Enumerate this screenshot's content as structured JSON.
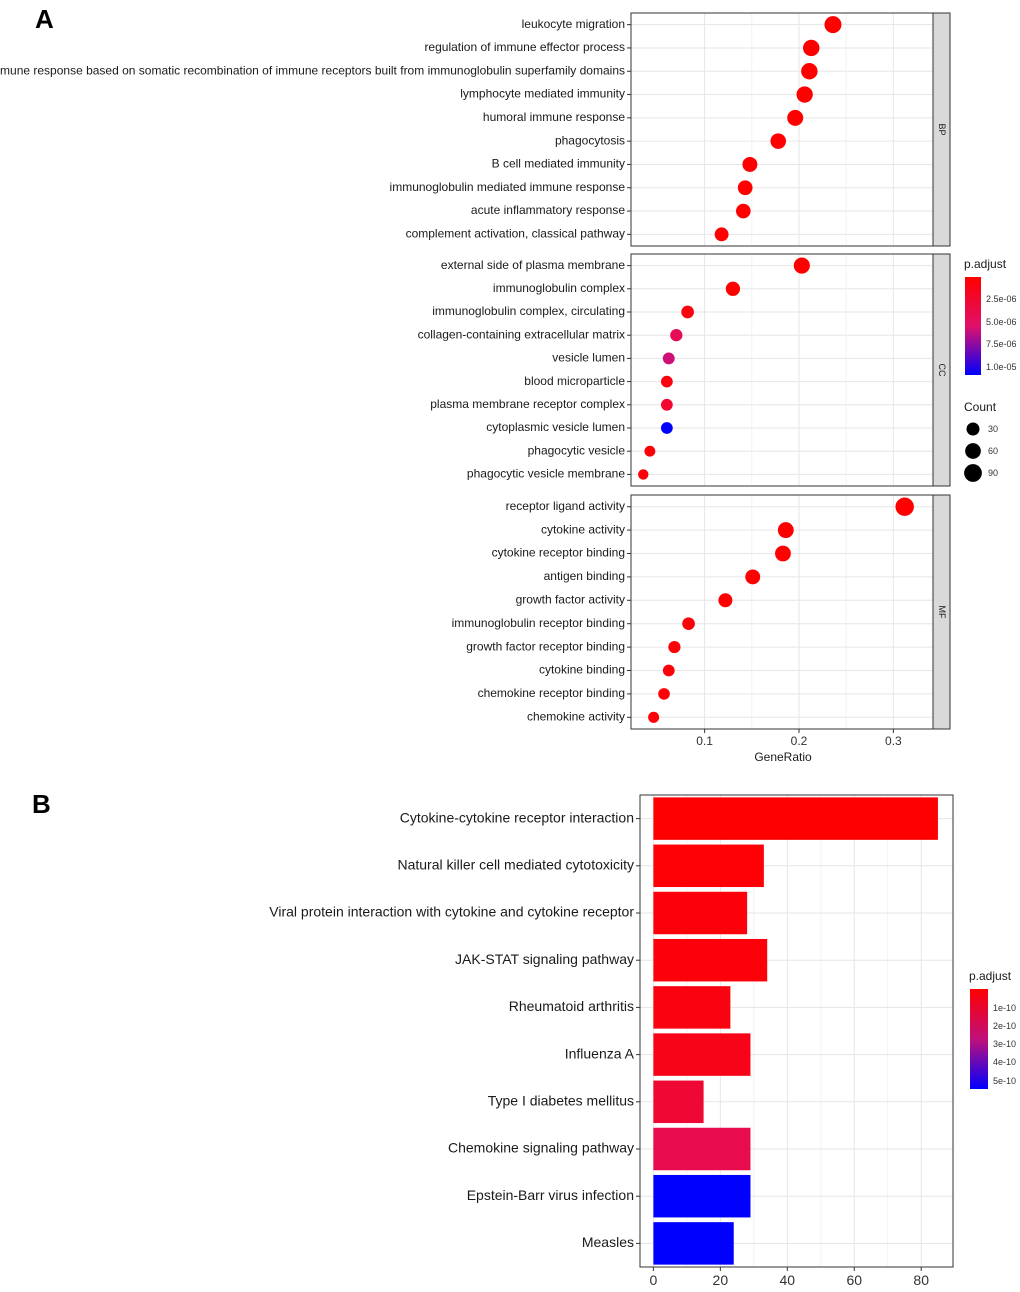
{
  "chart_data": [
    {
      "type": "scatter",
      "panel_label": "A",
      "xlabel": "GeneRatio",
      "xticks": [
        "0.1",
        "0.2",
        "0.3"
      ],
      "xlim": [
        0.022,
        0.342
      ],
      "facets": [
        {
          "name": "BP",
          "terms": [
            {
              "label": "leukocyte migration",
              "x": 0.236,
              "count": 78,
              "padj": 1e-07
            },
            {
              "label": "regulation of immune effector process",
              "x": 0.213,
              "count": 70,
              "padj": 1e-07
            },
            {
              "label": "adaptive immune response based on somatic recombination of immune receptors built from immunoglobulin superfamily domains",
              "x": 0.211,
              "count": 70,
              "padj": 1e-07
            },
            {
              "label": "lymphocyte mediated immunity",
              "x": 0.206,
              "count": 68,
              "padj": 1e-07
            },
            {
              "label": "humoral immune response",
              "x": 0.196,
              "count": 64,
              "padj": 1e-07
            },
            {
              "label": "phagocytosis",
              "x": 0.178,
              "count": 58,
              "padj": 1e-07
            },
            {
              "label": "B cell mediated immunity",
              "x": 0.148,
              "count": 50,
              "padj": 1e-07
            },
            {
              "label": "immunoglobulin mediated immune response",
              "x": 0.143,
              "count": 48,
              "padj": 1e-07
            },
            {
              "label": "acute inflammatory response",
              "x": 0.141,
              "count": 47,
              "padj": 1e-07
            },
            {
              "label": "complement activation, classical pathway",
              "x": 0.118,
              "count": 39,
              "padj": 1e-07
            }
          ]
        },
        {
          "name": "CC",
          "terms": [
            {
              "label": "external side of plasma membrane",
              "x": 0.203,
              "count": 66,
              "padj": 1e-07
            },
            {
              "label": "immunoglobulin complex",
              "x": 0.13,
              "count": 43,
              "padj": 1e-07
            },
            {
              "label": "immunoglobulin complex, circulating",
              "x": 0.082,
              "count": 27,
              "padj": 8e-07
            },
            {
              "label": "collagen-containing extracellular matrix",
              "x": 0.07,
              "count": 24,
              "padj": 4.5e-06
            },
            {
              "label": "vesicle lumen",
              "x": 0.062,
              "count": 21,
              "padj": 6e-06
            },
            {
              "label": "blood microparticle",
              "x": 0.06,
              "count": 20,
              "padj": 1e-06
            },
            {
              "label": "plasma membrane receptor complex",
              "x": 0.06,
              "count": 20,
              "padj": 2.5e-06
            },
            {
              "label": "cytoplasmic vesicle lumen",
              "x": 0.06,
              "count": 20,
              "padj": 1.1e-05
            },
            {
              "label": "phagocytic vesicle",
              "x": 0.042,
              "count": 14,
              "padj": 5e-07
            },
            {
              "label": "phagocytic vesicle membrane",
              "x": 0.035,
              "count": 11,
              "padj": 5e-07
            }
          ]
        },
        {
          "name": "MF",
          "terms": [
            {
              "label": "receptor ligand activity",
              "x": 0.312,
              "count": 100,
              "padj": 1e-07
            },
            {
              "label": "cytokine activity",
              "x": 0.186,
              "count": 62,
              "padj": 1e-07
            },
            {
              "label": "cytokine receptor binding",
              "x": 0.183,
              "count": 61,
              "padj": 1e-07
            },
            {
              "label": "antigen binding",
              "x": 0.151,
              "count": 50,
              "padj": 1e-07
            },
            {
              "label": "growth factor activity",
              "x": 0.122,
              "count": 40,
              "padj": 1e-07
            },
            {
              "label": "immunoglobulin receptor binding",
              "x": 0.083,
              "count": 27,
              "padj": 5e-07
            },
            {
              "label": "growth factor receptor binding",
              "x": 0.068,
              "count": 23,
              "padj": 5e-07
            },
            {
              "label": "cytokine binding",
              "x": 0.062,
              "count": 20,
              "padj": 5e-07
            },
            {
              "label": "chemokine receptor binding",
              "x": 0.057,
              "count": 19,
              "padj": 5e-07
            },
            {
              "label": "chemokine activity",
              "x": 0.046,
              "count": 15,
              "padj": 5e-07
            }
          ]
        }
      ],
      "legend_color": {
        "title": "p.adjust",
        "ticks": [
          "2.5e-06",
          "5.0e-06",
          "7.5e-06",
          "1.0e-05"
        ],
        "low_color": "#FF0000",
        "high_color": "#0000FF"
      },
      "legend_size": {
        "title": "Count",
        "entries": [
          {
            "label": "30",
            "count": 30
          },
          {
            "label": "60",
            "count": 60
          },
          {
            "label": "90",
            "count": 90
          }
        ]
      }
    },
    {
      "type": "bar",
      "orientation": "horizontal",
      "panel_label": "B",
      "categories": [
        "Cytokine-cytokine receptor interaction",
        "Natural killer cell mediated cytotoxicity",
        "Viral protein interaction with cytokine and cytokine receptor",
        "JAK-STAT signaling pathway",
        "Rheumatoid arthritis",
        "Influenza A",
        "Type I diabetes mellitus",
        "Chemokine signaling pathway",
        "Epstein-Barr virus infection",
        "Measles"
      ],
      "values": [
        85,
        33,
        28,
        34,
        23,
        29,
        15,
        29,
        29,
        24
      ],
      "padj": [
        5e-12,
        2e-11,
        3e-11,
        3e-11,
        5e-11,
        7e-11,
        1.4e-10,
        2.1e-10,
        5.6e-10,
        5.6e-10
      ],
      "xticks": [
        "0",
        "20",
        "40",
        "60",
        "80"
      ],
      "xlim": [
        -4,
        89.5
      ],
      "legend_color": {
        "title": "p.adjust",
        "ticks": [
          "1e-10",
          "2e-10",
          "3e-10",
          "4e-10",
          "5e-10"
        ],
        "low_color": "#FF0000",
        "high_color": "#0000FF"
      }
    }
  ]
}
